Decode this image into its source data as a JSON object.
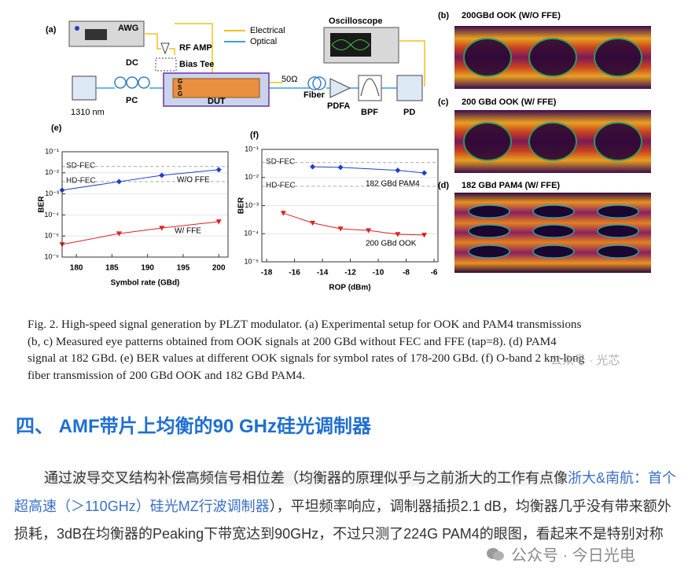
{
  "figure": {
    "setup": {
      "panel": "(a)",
      "awg": "AWG",
      "electrical": "Electrical",
      "optical": "Optical",
      "oscilloscope": "Oscilloscope",
      "rf_amp": "RF AMP",
      "dc": "DC",
      "bias_tee": "Bias Tee",
      "laser": "1310 nm",
      "pc": "PC",
      "dut": "DUT",
      "termination": "50Ω",
      "fiber": "Fiber",
      "pdfa": "PDFA",
      "bpf": "BPF",
      "pd": "PD",
      "ground": "G",
      "signal": "S"
    },
    "eyes": [
      {
        "panel": "(b)",
        "title": "200GBd OOK (W/O FFE)"
      },
      {
        "panel": "(c)",
        "title": "200 GBd OOK (W/ FFE)"
      },
      {
        "panel": "(d)",
        "title": "182 GBd PAM4 (W/ FFE)"
      }
    ],
    "charts": [
      {
        "type": "line",
        "panel": "(e)",
        "x_label": "Symbol rate (GBd)",
        "y_label": "BER",
        "log_y": true,
        "grid": true,
        "xlim": [
          178,
          201.3
        ],
        "xticks": [
          180,
          185,
          190,
          195,
          200
        ],
        "ylim": [
          1e-06,
          0.1
        ],
        "yticks": [
          {
            "value": 0.1,
            "label": "10⁻¹"
          },
          {
            "value": 0.01,
            "label": "10⁻²"
          },
          {
            "value": 0.001,
            "label": "10⁻³"
          },
          {
            "value": 0.0001,
            "label": "10⁻⁴"
          },
          {
            "value": 1e-05,
            "label": "10⁻⁵"
          },
          {
            "value": 1e-06,
            "label": "10⁻⁶"
          }
        ],
        "thresholds": [
          {
            "label": "SD-FEC",
            "value": 0.02
          },
          {
            "label": "HD-FEC",
            "value": 0.0038
          }
        ],
        "series": [
          {
            "name": "W/O FFE",
            "color": "#1f3fd0",
            "marker": "diamond",
            "x": [
              178,
              186,
              192,
              200
            ],
            "values": [
              0.0015,
              0.0038,
              0.0076,
              0.014
            ]
          },
          {
            "name": "W/ FFE",
            "color": "#e02020",
            "marker": "triangle",
            "x": [
              178,
              186,
              192,
              200
            ],
            "values": [
              4e-06,
              1.3e-05,
              2.4e-05,
              4.8e-05
            ]
          }
        ]
      },
      {
        "type": "line",
        "panel": "(f)",
        "x_label": "ROP (dBm)",
        "y_label": "BER",
        "log_y": true,
        "grid": true,
        "xlim": [
          -18.34,
          -5.72
        ],
        "xticks": [
          -18,
          -16,
          -14,
          -12,
          -10,
          -8,
          -6
        ],
        "ylim": [
          1e-05,
          0.1
        ],
        "yticks": [
          {
            "value": 0.1,
            "label": "10⁻¹"
          },
          {
            "value": 0.01,
            "label": "10⁻²"
          },
          {
            "value": 0.001,
            "label": "10⁻³"
          },
          {
            "value": 0.0001,
            "label": "10⁻⁴"
          },
          {
            "value": 1e-05,
            "label": "10⁻⁵"
          }
        ],
        "thresholds": [
          {
            "label": "SD-FEC",
            "value": 0.034
          },
          {
            "label": "HD-FEC",
            "value": 0.0049
          }
        ],
        "series": [
          {
            "name": "182 GBd PAM4",
            "color": "#1f3fd0",
            "marker": "diamond",
            "x": [
              -14.7,
              -12.7,
              -8.6,
              -6.7
            ],
            "values": [
              0.024,
              0.023,
              0.018,
              0.0145
            ]
          },
          {
            "name": "200 GBd OOK",
            "color": "#e02020",
            "marker": "triangle",
            "x": [
              -16.8,
              -14.7,
              -12.7,
              -10.7,
              -8.6,
              -6.7
            ],
            "values": [
              0.00054,
              0.00024,
              0.00015,
              0.00013,
              9.5e-05,
              9e-05
            ]
          }
        ]
      }
    ],
    "caption": [
      "Fig. 2. High-speed signal generation by PLZT modulator. (a) Experimental setup for OOK and PAM4 transmissions",
      "(b, c) Measured eye patterns obtained from OOK signals at 200 GBd without FEC and FFE (tap=8). (d) PAM4",
      "signal at 182 GBd. (e) BER values at different OOK signals for symbol rates of 178-200 GBd. (f) O-band 2 km-long",
      "fiber transmission of 200 GBd OOK and 182 GBd PAM4."
    ],
    "caption_watermark": "公众号 · 光芯"
  },
  "heading": "四、 AMF带片上均衡的90 GHz硅光调制器",
  "paragraph": {
    "before_link": "通过波导交叉结构补偿高频信号相位差（均衡器的原理似乎与之前浙大的工作有点像",
    "link": "浙大&南航：首个超高速（＞110GHz）硅光MZ行波调制器",
    "after_link": "），平坦频率响应，调制器插损2.1 dB，均衡器几乎没有带来额外损耗，3dB在均衡器的Peaking下带宽达到90GHz，不过只测了224G PAM4的眼图，看起来不是特别对称"
  },
  "watermark": "公众号 · 今日光电"
}
